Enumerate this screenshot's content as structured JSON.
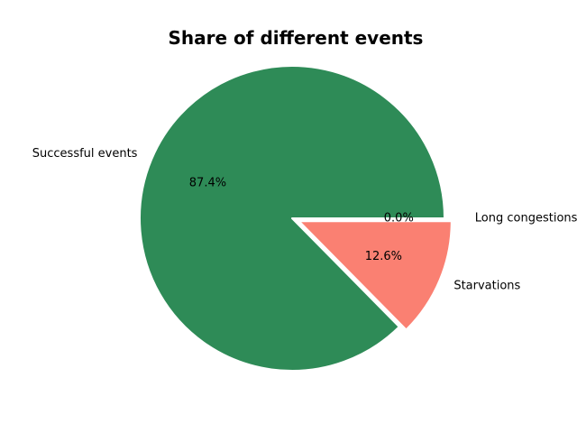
{
  "chart_data": {
    "type": "pie",
    "title": "Share of different events",
    "slices": [
      {
        "label": "Successful events",
        "value": 87.4,
        "pct_label": "87.4%",
        "color": "#2e8b57",
        "explode": 0.0
      },
      {
        "label": "Starvations",
        "value": 12.6,
        "pct_label": "12.6%",
        "color": "#fa8072",
        "explode": 0.05
      },
      {
        "label": "Long congestions",
        "value": 0.0,
        "pct_label": "0.0%",
        "color": "#ff6347",
        "explode": 0.1
      }
    ],
    "start_angle": 0,
    "direction": "counterclockwise",
    "wedge_edge_color": "#ffffff"
  }
}
